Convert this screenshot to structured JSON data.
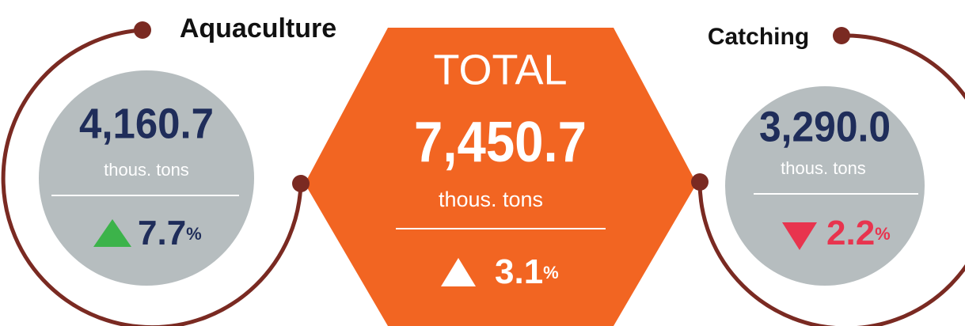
{
  "aquaculture": {
    "title": "Aquaculture",
    "value": "4,160.7",
    "unit": "thous. tons",
    "change": "7.7",
    "change_unit": "%"
  },
  "total": {
    "title": "TOTAL",
    "value": "7,450.7",
    "unit": "thous. tons",
    "change": "3.1",
    "change_unit": "%"
  },
  "catching": {
    "title": "Catching",
    "value": "3,290.0",
    "unit": "thous. tons",
    "change": "2.2",
    "change_unit": "%"
  }
}
